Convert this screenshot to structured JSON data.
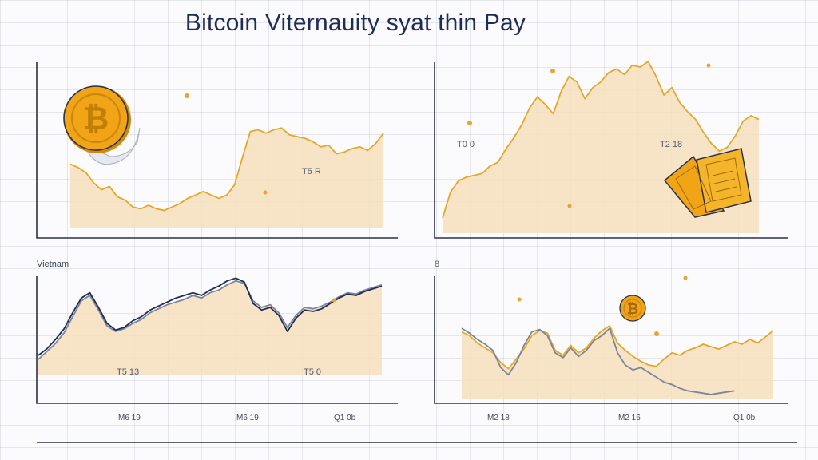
{
  "title": "Bitcoin Viternauity syat thin Pay",
  "colors": {
    "gold": "#e3a829",
    "fill": "#f6dfbc",
    "axis": "#2b3148",
    "navy": "#1f2d55",
    "gray": "#7d8499",
    "coin": "#f2a417"
  },
  "icons": [
    "bitcoin-coin-icon",
    "bitcoin-coin-small-icon",
    "paper-money-icon"
  ],
  "panel_labels": {
    "top_left_label": "T5 R",
    "top_right_label_left": "T0 0",
    "top_right_label_right": "T2 18",
    "bottom_left_caption": "Vietnam",
    "bottom_left_label_a": "T5 13",
    "bottom_left_label_b": "T5 0",
    "bottom_right_corner": "8"
  },
  "chart_data": [
    {
      "type": "area",
      "x": [
        0,
        1,
        2,
        3,
        4,
        5,
        6,
        7,
        8,
        9,
        10,
        11,
        12,
        13,
        14,
        15,
        16,
        17,
        18,
        19,
        20,
        21,
        22,
        23,
        24,
        25,
        26,
        27,
        28,
        29,
        30,
        31,
        32,
        33,
        34,
        35,
        36,
        37,
        38,
        39,
        40
      ],
      "series": [
        {
          "values": [
            37,
            35,
            32,
            26,
            22,
            24,
            18,
            16,
            12,
            11,
            13,
            11,
            10,
            12,
            14,
            17,
            19,
            21,
            19,
            17,
            19,
            25,
            41,
            56,
            57,
            55,
            57,
            58,
            54,
            53,
            52,
            50,
            47,
            48,
            43,
            44,
            46,
            47,
            45,
            49,
            55
          ]
        }
      ],
      "xlabel": "",
      "ylabel": "",
      "grid": true
    },
    {
      "type": "area",
      "x": [
        0,
        1,
        2,
        3,
        4,
        5,
        6,
        7,
        8,
        9,
        10,
        11,
        12,
        13,
        14,
        15,
        16,
        17,
        18,
        19,
        20,
        21,
        22,
        23,
        24,
        25,
        26,
        27,
        28,
        29,
        30,
        31,
        32,
        33,
        34,
        35,
        36,
        37,
        38,
        39,
        40
      ],
      "series": [
        {
          "values": [
            8,
            22,
            28,
            30,
            31,
            32,
            36,
            38,
            45,
            51,
            58,
            67,
            73,
            69,
            64,
            76,
            84,
            81,
            72,
            78,
            81,
            86,
            88,
            85,
            90,
            89,
            92,
            84,
            74,
            78,
            70,
            65,
            61,
            54,
            48,
            44,
            46,
            52,
            60,
            63,
            61
          ]
        }
      ],
      "xlabel": "",
      "ylabel": "",
      "grid": true
    },
    {
      "type": "line",
      "categories": [
        "M6 19",
        "M6 19",
        "Q1 0b"
      ],
      "x": [
        0,
        1,
        2,
        3,
        4,
        5,
        6,
        7,
        8,
        9,
        10,
        11,
        12,
        13,
        14,
        15,
        16,
        17,
        18,
        19,
        20,
        21,
        22,
        23,
        24,
        25,
        26,
        27,
        28,
        29,
        30,
        31,
        32,
        33,
        34,
        35,
        36,
        37,
        38,
        39,
        40
      ],
      "series": [
        {
          "values": [
            12,
            18,
            24,
            32,
            44,
            56,
            60,
            49,
            37,
            33,
            35,
            39,
            42,
            47,
            50,
            53,
            55,
            57,
            60,
            58,
            62,
            64,
            68,
            71,
            69,
            56,
            51,
            53,
            47,
            36,
            45,
            51,
            50,
            52,
            55,
            59,
            62,
            61,
            64,
            66,
            68
          ]
        },
        {
          "values": [
            15,
            20,
            27,
            35,
            47,
            58,
            62,
            51,
            39,
            34,
            36,
            41,
            44,
            49,
            52,
            55,
            58,
            60,
            62,
            60,
            64,
            67,
            71,
            73,
            70,
            54,
            49,
            51,
            45,
            33,
            43,
            49,
            48,
            50,
            54,
            58,
            61,
            60,
            63,
            65,
            67
          ]
        }
      ],
      "xlabel": "",
      "ylabel": "",
      "grid": true
    },
    {
      "type": "line",
      "categories": [
        "M2 18",
        "M2 16",
        "Q1 0b"
      ],
      "x": [
        0,
        1,
        2,
        3,
        4,
        5,
        6,
        7,
        8,
        9,
        10,
        11,
        12,
        13,
        14,
        15,
        16,
        17,
        18,
        19,
        20,
        21,
        22,
        23,
        24,
        25,
        26,
        27,
        28,
        29,
        30,
        31,
        32,
        33,
        34,
        35,
        36,
        37,
        38,
        39,
        40
      ],
      "series": [
        {
          "values": [
            55,
            52,
            46,
            42,
            38,
            30,
            25,
            33,
            41,
            52,
            56,
            54,
            40,
            36,
            44,
            38,
            42,
            50,
            56,
            60,
            46,
            40,
            35,
            31,
            28,
            27,
            33,
            38,
            36,
            40,
            42,
            45,
            43,
            41,
            44,
            47,
            45,
            49,
            46,
            51,
            56
          ]
        },
        {
          "values": [
            58,
            54,
            49,
            45,
            40,
            26,
            20,
            30,
            44,
            55,
            57,
            52,
            38,
            34,
            42,
            35,
            40,
            48,
            52,
            58,
            38,
            28,
            24,
            26,
            22,
            18,
            14,
            12,
            9,
            7,
            6,
            5,
            4,
            5,
            6,
            7,
            null,
            null,
            null,
            null,
            null
          ]
        }
      ],
      "xlabel": "",
      "ylabel": "",
      "grid": true
    }
  ]
}
